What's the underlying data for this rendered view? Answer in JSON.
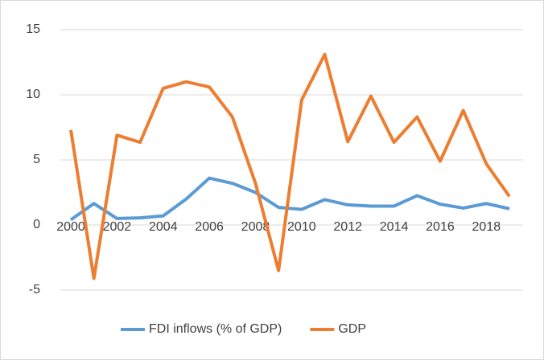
{
  "chart_data": {
    "type": "line",
    "x": [
      2000,
      2001,
      2002,
      2003,
      2004,
      2005,
      2006,
      2007,
      2008,
      2009,
      2010,
      2011,
      2012,
      2013,
      2014,
      2015,
      2016,
      2017,
      2018,
      2019
    ],
    "xlim": [
      2000,
      2019
    ],
    "xticks": [
      2000,
      2002,
      2004,
      2006,
      2008,
      2010,
      2012,
      2014,
      2016,
      2018
    ],
    "ylim": [
      -5,
      15
    ],
    "yticks": [
      -5,
      0,
      5,
      10,
      15
    ],
    "grid": true,
    "legend": "bottom",
    "series": [
      {
        "name": "FDI inflows (% of GDP)",
        "color": "#5b9bd5",
        "values": [
          0.4,
          1.65,
          0.5,
          0.55,
          0.7,
          2.0,
          3.6,
          3.2,
          2.5,
          1.35,
          1.2,
          1.95,
          1.55,
          1.45,
          1.45,
          2.25,
          1.6,
          1.3,
          1.65,
          1.25
        ]
      },
      {
        "name": "GDP",
        "color": "#ed7d31",
        "values": [
          7.3,
          -4.1,
          6.9,
          6.35,
          10.5,
          11.0,
          10.6,
          8.3,
          3.2,
          -3.5,
          9.6,
          13.1,
          6.4,
          9.9,
          6.35,
          8.3,
          4.9,
          8.8,
          4.7,
          2.2
        ]
      }
    ]
  }
}
